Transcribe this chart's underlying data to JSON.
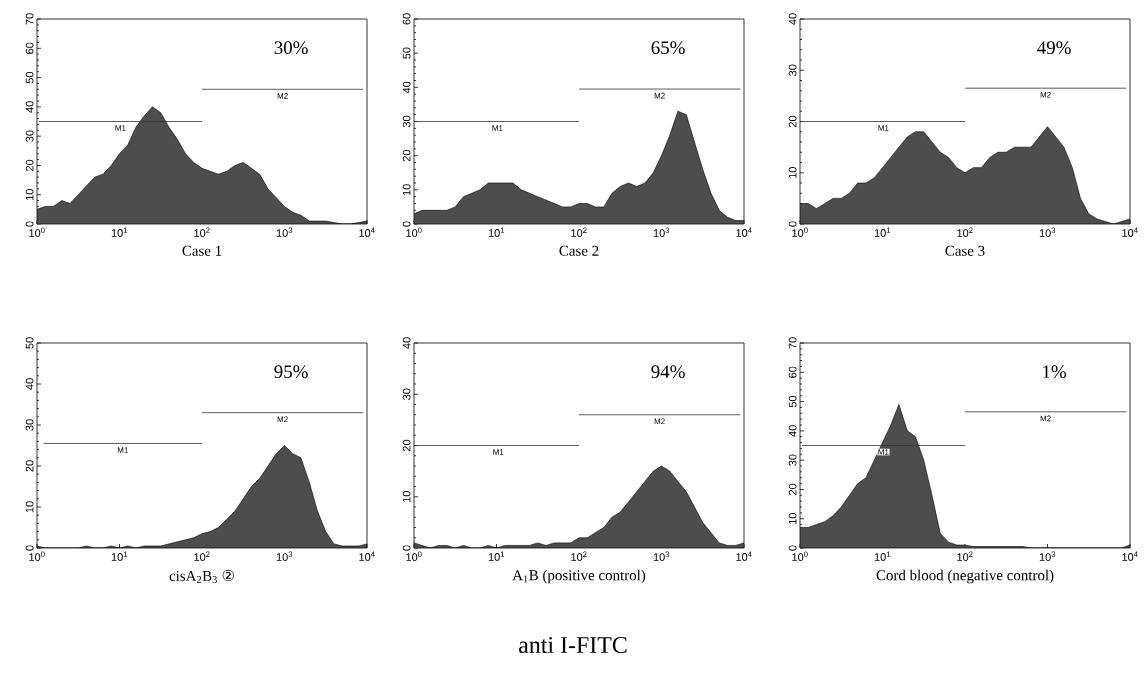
{
  "chart_data": [
    {
      "type": "area",
      "xlabel": "Case 1",
      "log": "x",
      "xlim": [
        1,
        10000
      ],
      "ylim": [
        0,
        70
      ],
      "yticks": [
        0,
        10,
        20,
        30,
        40,
        50,
        60,
        70
      ],
      "xticks": [
        {
          "value": 1,
          "label": "10$^{0}$"
        },
        {
          "value": 10,
          "label": "10$^{1}$"
        },
        {
          "value": 100,
          "label": "10$^{2}$"
        },
        {
          "value": 1000,
          "label": "10$^{3}$"
        },
        {
          "value": 10000,
          "label": "10$^{4}$"
        }
      ],
      "annotations": [
        "30%"
      ],
      "x": [
        1,
        1.26,
        1.58,
        2,
        2.51,
        3.16,
        3.98,
        5.01,
        6.31,
        7.94,
        10,
        12.6,
        15.8,
        20,
        25.1,
        31.6,
        39.8,
        50.1,
        63.1,
        79.4,
        100,
        126,
        158,
        200,
        251,
        316,
        398,
        501,
        631,
        794,
        1000,
        1260,
        1580,
        2000,
        2510,
        3160,
        3980,
        5010,
        6310,
        7940,
        10000
      ],
      "series": [
        {
          "type": "area",
          "color": "#4d4d4d",
          "values": [
            5,
            6,
            6,
            8,
            7,
            10,
            13,
            16,
            17,
            20,
            24,
            27,
            33,
            37,
            40,
            38,
            33,
            29,
            24,
            21,
            19,
            18,
            17,
            18,
            20,
            21,
            19,
            17,
            12,
            9,
            6,
            4,
            3,
            1,
            1,
            1,
            0.5,
            0,
            0,
            0.5,
            1
          ]
        },
        {
          "type": "line",
          "name": "M1",
          "color": "#333333",
          "x": [
            1.05,
            100
          ],
          "values": [
            35,
            35
          ]
        },
        {
          "type": "line",
          "name": "M2",
          "color": "#333333",
          "x": [
            100,
            9000
          ],
          "values": [
            46,
            46
          ]
        }
      ]
    },
    {
      "type": "area",
      "xlabel": "Case 2",
      "log": "x",
      "xlim": [
        1,
        10000
      ],
      "ylim": [
        0,
        60
      ],
      "yticks": [
        0,
        10,
        20,
        30,
        40,
        50,
        60
      ],
      "xticks": [
        {
          "value": 1,
          "label": "10$^{0}$"
        },
        {
          "value": 10,
          "label": "10$^{1}$"
        },
        {
          "value": 100,
          "label": "10$^{2}$"
        },
        {
          "value": 1000,
          "label": "10$^{3}$"
        },
        {
          "value": 10000,
          "label": "10$^{4}$"
        }
      ],
      "annotations": [
        "65%"
      ],
      "x": [
        1,
        1.26,
        1.58,
        2,
        2.51,
        3.16,
        3.98,
        5.01,
        6.31,
        7.94,
        10,
        12.6,
        15.8,
        20,
        25.1,
        31.6,
        39.8,
        50.1,
        63.1,
        79.4,
        100,
        126,
        158,
        200,
        251,
        316,
        398,
        501,
        631,
        794,
        1000,
        1260,
        1580,
        2000,
        2510,
        3160,
        3980,
        5010,
        6310,
        7940,
        10000
      ],
      "series": [
        {
          "type": "area",
          "color": "#4d4d4d",
          "values": [
            3,
            4,
            4,
            4,
            4,
            5,
            8,
            9,
            10,
            12,
            12,
            12,
            12,
            10,
            9,
            8,
            7,
            6,
            5,
            5,
            6,
            6,
            5,
            5,
            9,
            11,
            12,
            11,
            12,
            15,
            20,
            26,
            33,
            32,
            24,
            16,
            9,
            4,
            2,
            1,
            1
          ]
        },
        {
          "type": "line",
          "name": "M1",
          "color": "#333333",
          "x": [
            1.05,
            100
          ],
          "values": [
            30,
            30
          ]
        },
        {
          "type": "line",
          "name": "M2",
          "color": "#333333",
          "x": [
            100,
            9000
          ],
          "values": [
            39.5,
            39.5
          ]
        }
      ]
    },
    {
      "type": "area",
      "xlabel": "Case 3",
      "log": "x",
      "xlim": [
        1,
        10000
      ],
      "ylim": [
        0,
        40
      ],
      "yticks": [
        0,
        10,
        20,
        30,
        40
      ],
      "xticks": [
        {
          "value": 1,
          "label": "10$^{0}$"
        },
        {
          "value": 10,
          "label": "10$^{1}$"
        },
        {
          "value": 100,
          "label": "10$^{2}$"
        },
        {
          "value": 1000,
          "label": "10$^{3}$"
        },
        {
          "value": 10000,
          "label": "10$^{4}$"
        }
      ],
      "annotations": [
        "49%"
      ],
      "x": [
        1,
        1.26,
        1.58,
        2,
        2.51,
        3.16,
        3.98,
        5.01,
        6.31,
        7.94,
        10,
        12.6,
        15.8,
        20,
        25.1,
        31.6,
        39.8,
        50.1,
        63.1,
        79.4,
        100,
        126,
        158,
        200,
        251,
        316,
        398,
        501,
        631,
        794,
        1000,
        1260,
        1580,
        2000,
        2510,
        3160,
        3980,
        5010,
        6310,
        7940,
        10000
      ],
      "series": [
        {
          "type": "area",
          "color": "#4d4d4d",
          "values": [
            4,
            4,
            3,
            4,
            5,
            5,
            6,
            8,
            8,
            9,
            11,
            13,
            15,
            17,
            18,
            18,
            16,
            14,
            13,
            11,
            10,
            11,
            11,
            13,
            14,
            14,
            15,
            15,
            15,
            17,
            19,
            17,
            15,
            11,
            5,
            2,
            1,
            0.5,
            0,
            0.5,
            1
          ]
        },
        {
          "type": "line",
          "name": "M1",
          "color": "#333333",
          "x": [
            1.05,
            100
          ],
          "values": [
            20,
            20
          ]
        },
        {
          "type": "line",
          "name": "M2",
          "color": "#333333",
          "x": [
            100,
            9000
          ],
          "values": [
            26.5,
            26.5
          ]
        }
      ]
    },
    {
      "type": "area",
      "xlabel": "cisA$_{2}$B$_{3}$ ②",
      "log": "x",
      "xlim": [
        1,
        10000
      ],
      "ylim": [
        0,
        50
      ],
      "yticks": [
        0,
        10,
        20,
        30,
        40,
        50
      ],
      "xticks": [
        {
          "value": 1,
          "label": "10$^{0}$"
        },
        {
          "value": 10,
          "label": "10$^{1}$"
        },
        {
          "value": 100,
          "label": "10$^{2}$"
        },
        {
          "value": 1000,
          "label": "10$^{3}$"
        },
        {
          "value": 10000,
          "label": "10$^{4}$"
        }
      ],
      "annotations": [
        "95%"
      ],
      "x": [
        1,
        1.26,
        1.58,
        2,
        2.51,
        3.16,
        3.98,
        5.01,
        6.31,
        7.94,
        10,
        12.6,
        15.8,
        20,
        25.1,
        31.6,
        39.8,
        50.1,
        63.1,
        79.4,
        100,
        126,
        158,
        200,
        251,
        316,
        398,
        501,
        631,
        794,
        1000,
        1260,
        1580,
        2000,
        2510,
        3160,
        3980,
        5010,
        6310,
        7940,
        10000
      ],
      "series": [
        {
          "type": "area",
          "color": "#4d4d4d",
          "values": [
            0.5,
            0,
            0,
            0,
            0,
            0,
            0.5,
            0,
            0,
            0.5,
            0,
            0.5,
            0,
            0.5,
            0.5,
            0.5,
            1,
            1.5,
            2,
            2.5,
            3.5,
            4,
            5,
            7,
            9,
            12,
            15,
            17,
            20,
            23,
            25,
            23,
            22,
            16,
            9,
            4,
            1,
            0.5,
            0.5,
            0.5,
            1
          ]
        },
        {
          "type": "line",
          "name": "M1",
          "color": "#333333",
          "x": [
            1.2,
            100
          ],
          "values": [
            25.5,
            25.5
          ]
        },
        {
          "type": "line",
          "name": "M2",
          "color": "#333333",
          "x": [
            100,
            9000
          ],
          "values": [
            33,
            33
          ]
        }
      ]
    },
    {
      "type": "area",
      "xlabel": "A$_{1}$B (positive control)",
      "log": "x",
      "xlim": [
        1,
        10000
      ],
      "ylim": [
        0,
        40
      ],
      "yticks": [
        0,
        10,
        20,
        30,
        40
      ],
      "xticks": [
        {
          "value": 1,
          "label": "10$^{0}$"
        },
        {
          "value": 10,
          "label": "10$^{1}$"
        },
        {
          "value": 100,
          "label": "10$^{2}$"
        },
        {
          "value": 1000,
          "label": "10$^{3}$"
        },
        {
          "value": 10000,
          "label": "10$^{4}$"
        }
      ],
      "annotations": [
        "94%"
      ],
      "x": [
        1,
        1.26,
        1.58,
        2,
        2.51,
        3.16,
        3.98,
        5.01,
        6.31,
        7.94,
        10,
        12.6,
        15.8,
        20,
        25.1,
        31.6,
        39.8,
        50.1,
        63.1,
        79.4,
        100,
        126,
        158,
        200,
        251,
        316,
        398,
        501,
        631,
        794,
        1000,
        1260,
        1580,
        2000,
        2510,
        3160,
        3980,
        5010,
        6310,
        7940,
        10000
      ],
      "series": [
        {
          "type": "area",
          "color": "#4d4d4d",
          "values": [
            1,
            0.5,
            0,
            0.5,
            0.5,
            0,
            0.5,
            0,
            0,
            0.5,
            0,
            0.5,
            0.5,
            0.5,
            0.5,
            1,
            0.5,
            1,
            1,
            1,
            2,
            2,
            3,
            4,
            6,
            7,
            9,
            11,
            13,
            15,
            16,
            15,
            13,
            11,
            8,
            5,
            3,
            1,
            0.5,
            0.5,
            1
          ]
        },
        {
          "type": "line",
          "name": "M1",
          "color": "#333333",
          "x": [
            1.1,
            100
          ],
          "values": [
            20,
            20
          ]
        },
        {
          "type": "line",
          "name": "M2",
          "color": "#333333",
          "x": [
            100,
            9000
          ],
          "values": [
            26,
            26
          ]
        }
      ]
    },
    {
      "type": "area",
      "xlabel": "Cord blood (negative control)",
      "log": "x",
      "xlim": [
        1,
        10000
      ],
      "ylim": [
        0,
        70
      ],
      "yticks": [
        0,
        10,
        20,
        30,
        40,
        50,
        60,
        70
      ],
      "xticks": [
        {
          "value": 1,
          "label": "10$^{0}$"
        },
        {
          "value": 10,
          "label": "10$^{1}$"
        },
        {
          "value": 100,
          "label": "10$^{2}$"
        },
        {
          "value": 1000,
          "label": "10$^{3}$"
        },
        {
          "value": 10000,
          "label": "10$^{4}$"
        }
      ],
      "annotations": [
        "1%"
      ],
      "x": [
        1,
        1.26,
        1.58,
        2,
        2.51,
        3.16,
        3.98,
        5.01,
        6.31,
        7.94,
        10,
        12.6,
        15.8,
        20,
        25.1,
        31.6,
        39.8,
        50.1,
        63.1,
        79.4,
        100,
        126,
        158,
        200,
        251,
        316,
        398,
        501,
        631,
        794,
        1000,
        1260,
        1580,
        2000,
        2510,
        3160,
        3980,
        5010,
        6310,
        7940,
        10000
      ],
      "series": [
        {
          "type": "area",
          "color": "#4d4d4d",
          "values": [
            7,
            7,
            8,
            9,
            11,
            14,
            18,
            22,
            24,
            30,
            36,
            42,
            49,
            40,
            38,
            30,
            18,
            5,
            2,
            1,
            1,
            0.5,
            0.5,
            0.5,
            0.5,
            0.5,
            0.5,
            0.5,
            0,
            0,
            0,
            0,
            0,
            0,
            0,
            0,
            0,
            0,
            0,
            0,
            1
          ]
        },
        {
          "type": "line",
          "name": "M1",
          "color": "#333333",
          "x": [
            1.05,
            100
          ],
          "values": [
            35,
            35
          ]
        },
        {
          "type": "line",
          "name": "M2",
          "color": "#333333",
          "x": [
            100,
            9000
          ],
          "values": [
            46.5,
            46.5
          ]
        }
      ]
    },
    {
      "type": "other",
      "title": "anti I-FITC"
    }
  ]
}
